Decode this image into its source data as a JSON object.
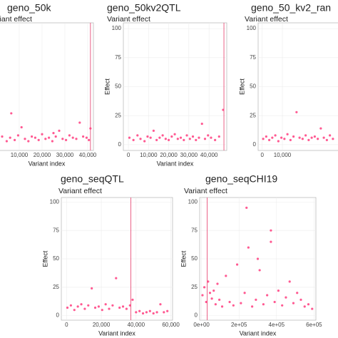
{
  "chart_data": [
    {
      "type": "scatter",
      "title": "geno_50k",
      "subtitle": "Variant effect",
      "x_label": "Variant index",
      "color": "#ff3d7f",
      "vline": 41200,
      "vline_color": "#e8507a",
      "grid": true,
      "xlim": [
        -2000,
        42500
      ],
      "ylim": [
        -5,
        105
      ],
      "xticks": [
        {
          "value": 10000,
          "label": "10,000"
        },
        {
          "value": 20000,
          "label": "20,000"
        },
        {
          "value": 30000,
          "label": "30,000"
        },
        {
          "value": 40000,
          "label": "40,000"
        }
      ],
      "x": [
        500,
        2500,
        4500,
        6000,
        8000,
        9500,
        11000,
        12500,
        14000,
        15500,
        17000,
        18500,
        20000,
        21500,
        23000,
        24500,
        26000,
        27500,
        29000,
        30500,
        32000,
        33500,
        35000,
        36500,
        38000,
        39500,
        40500,
        41200,
        6500,
        25000
      ],
      "values": [
        5,
        7,
        3,
        6,
        4,
        8,
        15,
        5,
        3,
        7,
        6,
        4,
        9,
        5,
        6,
        3,
        7,
        12,
        5,
        4,
        8,
        6,
        5,
        19,
        7,
        6,
        4,
        14,
        27,
        10
      ]
    },
    {
      "type": "scatter",
      "title": "geno_50kv2QTL",
      "subtitle": "Variant effect",
      "x_label": "Variant index",
      "y_label": "Effect",
      "color": "#ff3d7f",
      "vline": 47400,
      "vline_color": "#e8507a",
      "grid": true,
      "xlim": [
        -2500,
        48800
      ],
      "ylim": [
        -5,
        105
      ],
      "yticks": [
        0,
        25,
        50,
        75,
        100
      ],
      "xticks": [
        0,
        {
          "value": 10000,
          "label": "10,000"
        },
        {
          "value": 20000,
          "label": "20,000"
        },
        {
          "value": 30000,
          "label": "30,000"
        },
        {
          "value": 40000,
          "label": "40,000"
        }
      ],
      "x": [
        500,
        2500,
        4500,
        6000,
        8000,
        9500,
        11000,
        12500,
        14000,
        15500,
        17000,
        18500,
        20000,
        21500,
        23000,
        24500,
        26000,
        27500,
        29000,
        30500,
        32000,
        33500,
        35000,
        36500,
        38000,
        39500,
        41000,
        43000,
        45000,
        47000
      ],
      "values": [
        6,
        4,
        8,
        5,
        3,
        7,
        6,
        12,
        4,
        6,
        8,
        5,
        4,
        7,
        9,
        5,
        6,
        4,
        8,
        5,
        7,
        4,
        6,
        18,
        5,
        8,
        6,
        4,
        7,
        30
      ]
    },
    {
      "type": "scatter",
      "title": "geno_50_kv2_ran",
      "subtitle": "Variant effect",
      "y_label": "Effect",
      "color": "#ff3d7f",
      "grid": true,
      "xlim": [
        -2000,
        48800
      ],
      "ylim": [
        -5,
        105
      ],
      "yticks": [
        0,
        25,
        50,
        75,
        100
      ],
      "xticks": [
        0,
        {
          "value": 10000,
          "label": "10,000"
        }
      ],
      "x": [
        500,
        2000,
        3500,
        5000,
        6500,
        8000,
        9500,
        11000,
        12500,
        14000,
        15500,
        17000,
        18500,
        20000,
        21500,
        23000,
        24500,
        26000,
        27500,
        29000,
        30500,
        32000,
        33500,
        35000
      ],
      "values": [
        5,
        7,
        4,
        6,
        8,
        3,
        6,
        5,
        9,
        4,
        7,
        28,
        6,
        5,
        8,
        4,
        6,
        7,
        5,
        14,
        6,
        4,
        8,
        5
      ]
    },
    {
      "type": "scatter",
      "title": "geno_seqQTL",
      "subtitle": "Variant effect",
      "x_label": "Variant index",
      "y_label": "Effect",
      "color": "#ff3d7f",
      "vline": 37000,
      "vline_color": "#e8507a",
      "grid": true,
      "xlim": [
        -3000,
        61000
      ],
      "ylim": [
        -4,
        104
      ],
      "yticks": [
        0,
        25,
        50,
        75,
        100
      ],
      "xticks": [
        0,
        {
          "value": 20000,
          "label": "20,000"
        },
        {
          "value": 40000,
          "label": "40,000"
        },
        {
          "value": 60000,
          "label": "60,000"
        }
      ],
      "x": [
        500,
        2500,
        4500,
        6500,
        8500,
        10500,
        12500,
        14500,
        16500,
        18500,
        20500,
        22500,
        24500,
        26500,
        28500,
        30500,
        32500,
        34500,
        36500,
        38000,
        40000,
        42000,
        44000,
        46000,
        48000,
        50000,
        52000,
        54000,
        56000,
        58000
      ],
      "values": [
        7,
        9,
        5,
        8,
        10,
        6,
        9,
        24,
        7,
        8,
        5,
        10,
        6,
        9,
        33,
        7,
        8,
        6,
        9,
        14,
        3,
        4,
        2,
        3,
        4,
        2,
        3,
        10,
        3,
        4
      ]
    },
    {
      "type": "scatter",
      "title": "geno_seqCHI19",
      "subtitle": "Variant effect",
      "x_label": "Variant index",
      "y_label": "Effect",
      "color": "#ff3d7f",
      "vline": 30000,
      "vline_color": "#e8507a",
      "grid": true,
      "xlim": [
        -10000,
        610000
      ],
      "ylim": [
        -4,
        104
      ],
      "yticks": [
        0,
        25,
        50,
        75,
        100
      ],
      "xticks": [
        {
          "value": 0,
          "label": "0e+00"
        },
        {
          "value": 200000,
          "label": "2e+05"
        },
        {
          "value": 400000,
          "label": "4e+05"
        },
        {
          "value": 600000,
          "label": "6e+05"
        }
      ],
      "x": [
        5000,
        15000,
        25000,
        35000,
        45000,
        55000,
        65000,
        75000,
        85000,
        95000,
        110000,
        130000,
        150000,
        170000,
        190000,
        210000,
        230000,
        250000,
        270000,
        290000,
        310000,
        330000,
        350000,
        370000,
        390000,
        410000,
        430000,
        450000,
        470000,
        490000,
        510000,
        530000,
        550000,
        570000,
        590000,
        240000,
        300000,
        370000
      ],
      "values": [
        18,
        25,
        12,
        30,
        20,
        15,
        22,
        10,
        28,
        14,
        8,
        35,
        12,
        9,
        45,
        11,
        20,
        60,
        8,
        14,
        40,
        10,
        18,
        65,
        12,
        22,
        9,
        16,
        30,
        11,
        20,
        14,
        8,
        10,
        6,
        95,
        50,
        75
      ]
    }
  ]
}
